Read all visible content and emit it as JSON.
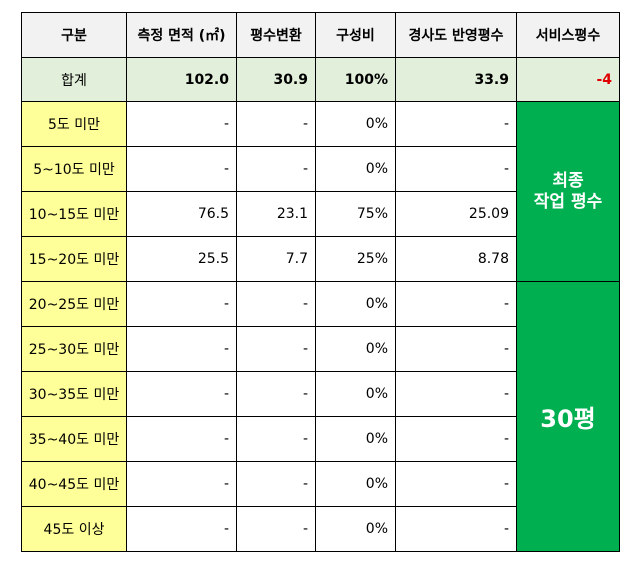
{
  "headers": [
    "구분",
    "측정 면적 (㎡)",
    "평수변환",
    "구성비",
    "경사도 반영평수",
    "서비스평수"
  ],
  "total": {
    "label": "합계",
    "area": "102.0",
    "pyeong": "30.9",
    "ratio": "100%",
    "slope_pyeong": "33.9",
    "service": "-4"
  },
  "rows": [
    {
      "label": "5도 미만",
      "area": "-",
      "pyeong": "-",
      "ratio": "0%",
      "slope_pyeong": "-"
    },
    {
      "label": "5~10도 미만",
      "area": "-",
      "pyeong": "-",
      "ratio": "0%",
      "slope_pyeong": "-"
    },
    {
      "label": "10~15도 미만",
      "area": "76.5",
      "pyeong": "23.1",
      "ratio": "75%",
      "slope_pyeong": "25.09"
    },
    {
      "label": "15~20도 미만",
      "area": "25.5",
      "pyeong": "7.7",
      "ratio": "25%",
      "slope_pyeong": "8.78"
    },
    {
      "label": "20~25도 미만",
      "area": "-",
      "pyeong": "-",
      "ratio": "0%",
      "slope_pyeong": "-"
    },
    {
      "label": "25~30도 미만",
      "area": "-",
      "pyeong": "-",
      "ratio": "0%",
      "slope_pyeong": "-"
    },
    {
      "label": "30~35도 미만",
      "area": "-",
      "pyeong": "-",
      "ratio": "0%",
      "slope_pyeong": "-"
    },
    {
      "label": "35~40도 미만",
      "area": "-",
      "pyeong": "-",
      "ratio": "0%",
      "slope_pyeong": "-"
    },
    {
      "label": "40~45도 미만",
      "area": "-",
      "pyeong": "-",
      "ratio": "0%",
      "slope_pyeong": "-"
    },
    {
      "label": "45도 이상",
      "area": "-",
      "pyeong": "-",
      "ratio": "0%",
      "slope_pyeong": "-"
    }
  ],
  "final_label_line1": "최종",
  "final_label_line2": "작업 평수",
  "final_value": "30평",
  "colors": {
    "header_bg": "#f2f2f2",
    "total_bg": "#e2efda",
    "category_bg": "#ffff99",
    "final_bg": "#00b050",
    "negative": "#e00000"
  }
}
